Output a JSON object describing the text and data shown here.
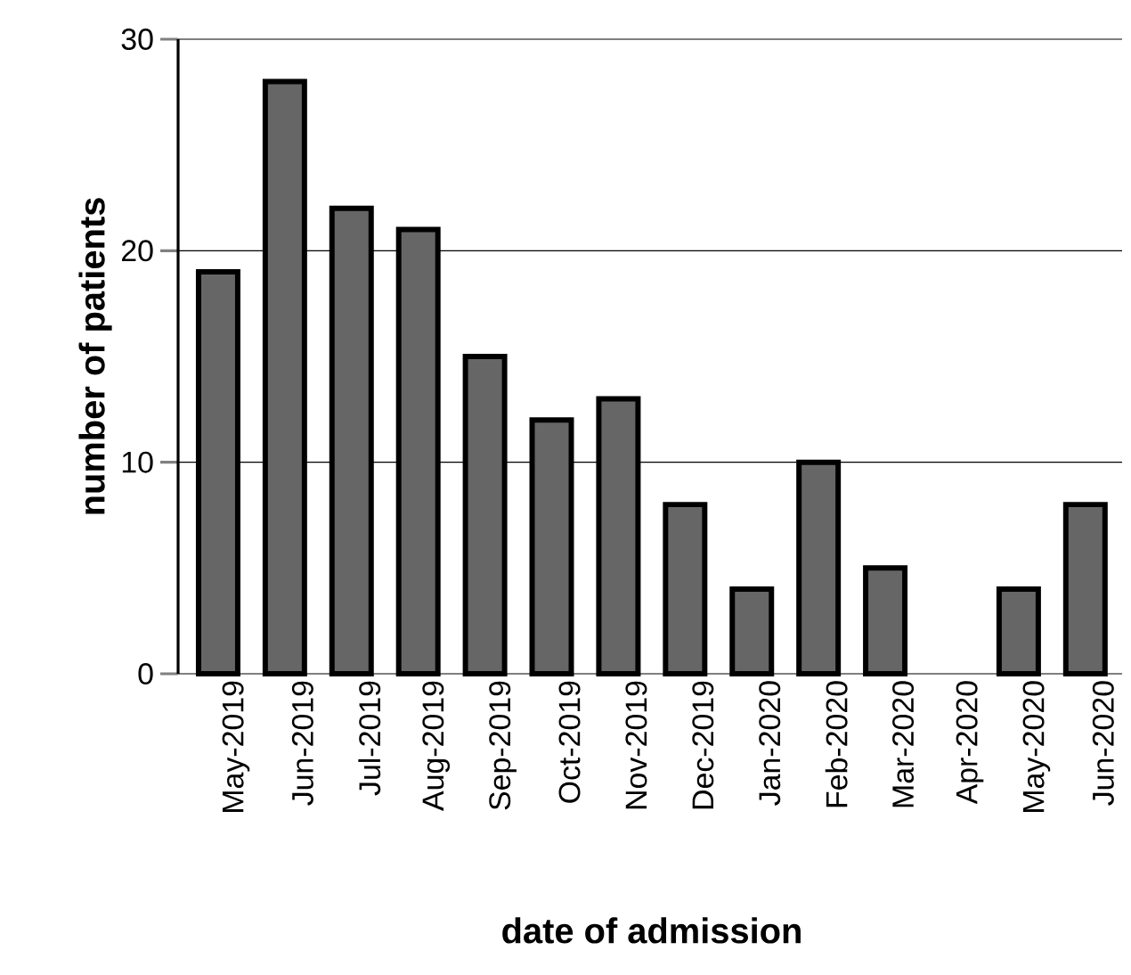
{
  "chart_data": {
    "type": "bar",
    "xlabel": "date of admission",
    "ylabel": "number of patients",
    "categories": [
      "May-2019",
      "Jun-2019",
      "Jul-2019",
      "Aug-2019",
      "Sep-2019",
      "Oct-2019",
      "Nov-2019",
      "Dec-2019",
      "Jan-2020",
      "Feb-2020",
      "Mar-2020",
      "Apr-2020",
      "May-2020",
      "Jun-2020"
    ],
    "values": [
      19,
      28,
      22,
      21,
      15,
      12,
      13,
      8,
      4,
      10,
      5,
      0,
      4,
      8
    ],
    "color": "#666666",
    "ylim": [
      0,
      30
    ],
    "yticks": [
      0,
      10,
      20,
      30
    ],
    "grid": "y"
  }
}
